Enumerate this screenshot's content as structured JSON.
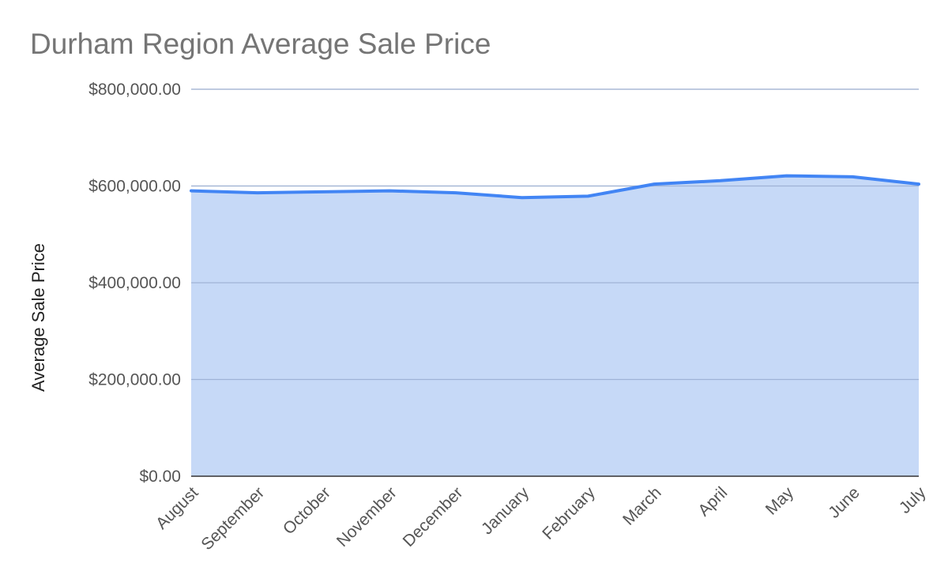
{
  "chart_data": {
    "type": "area",
    "title": "Durham Region Average Sale Price",
    "xlabel": "",
    "ylabel": "Average Sale Price",
    "categories": [
      "August",
      "September",
      "October",
      "November",
      "December",
      "January",
      "February",
      "March",
      "April",
      "May",
      "June",
      "July"
    ],
    "series": [
      {
        "values": [
          590000,
          586000,
          588000,
          590000,
          586000,
          576000,
          579000,
          604000,
          611000,
          621000,
          619000,
          604000
        ]
      }
    ],
    "ylim": [
      0,
      800000
    ],
    "yticks": [
      0,
      200000,
      400000,
      600000,
      800000
    ],
    "ytick_labels": [
      "$0.00",
      "$200,000.00",
      "$400,000.00",
      "$600,000.00",
      "$800,000.00"
    ],
    "grid": true,
    "legend": "none",
    "colors": {
      "line": "#4285f4",
      "fill": "#c6d9f7",
      "title": "#757575",
      "tick_text": "#555555",
      "axis_title": "#222222"
    }
  }
}
